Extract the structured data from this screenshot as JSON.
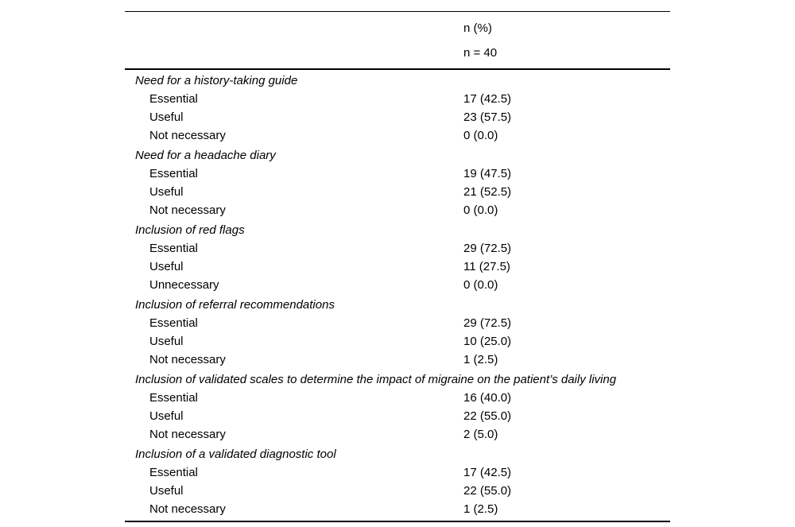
{
  "table": {
    "header": {
      "value_col_line1": "n (%)",
      "value_col_line2": "n = 40"
    },
    "sections": [
      {
        "title": "Need for a history-taking guide",
        "rows": [
          {
            "label": "Essential",
            "value": "17 (42.5)"
          },
          {
            "label": "Useful",
            "value": "23 (57.5)"
          },
          {
            "label": "Not necessary",
            "value": "0 (0.0)"
          }
        ]
      },
      {
        "title": "Need for a headache diary",
        "rows": [
          {
            "label": "Essential",
            "value": "19 (47.5)"
          },
          {
            "label": "Useful",
            "value": "21 (52.5)"
          },
          {
            "label": "Not necessary",
            "value": "0 (0.0)"
          }
        ]
      },
      {
        "title": "Inclusion of red flags",
        "rows": [
          {
            "label": "Essential",
            "value": "29 (72.5)"
          },
          {
            "label": "Useful",
            "value": "11 (27.5)"
          },
          {
            "label": "Unnecessary",
            "value": "0 (0.0)"
          }
        ]
      },
      {
        "title": "Inclusion of referral recommendations",
        "rows": [
          {
            "label": "Essential",
            "value": "29 (72.5)"
          },
          {
            "label": "Useful",
            "value": "10 (25.0)"
          },
          {
            "label": "Not necessary",
            "value": "1 (2.5)"
          }
        ]
      },
      {
        "title": "Inclusion of validated scales to determine the impact of migraine on the patient’s daily living",
        "rows": [
          {
            "label": "Essential",
            "value": "16 (40.0)"
          },
          {
            "label": "Useful",
            "value": "22 (55.0)"
          },
          {
            "label": "Not necessary",
            "value": "2 (5.0)"
          }
        ]
      },
      {
        "title": "Inclusion of a validated diagnostic tool",
        "rows": [
          {
            "label": "Essential",
            "value": "17 (42.5)"
          },
          {
            "label": "Useful",
            "value": "22 (55.0)"
          },
          {
            "label": "Not necessary",
            "value": "1 (2.5)"
          }
        ]
      }
    ]
  }
}
